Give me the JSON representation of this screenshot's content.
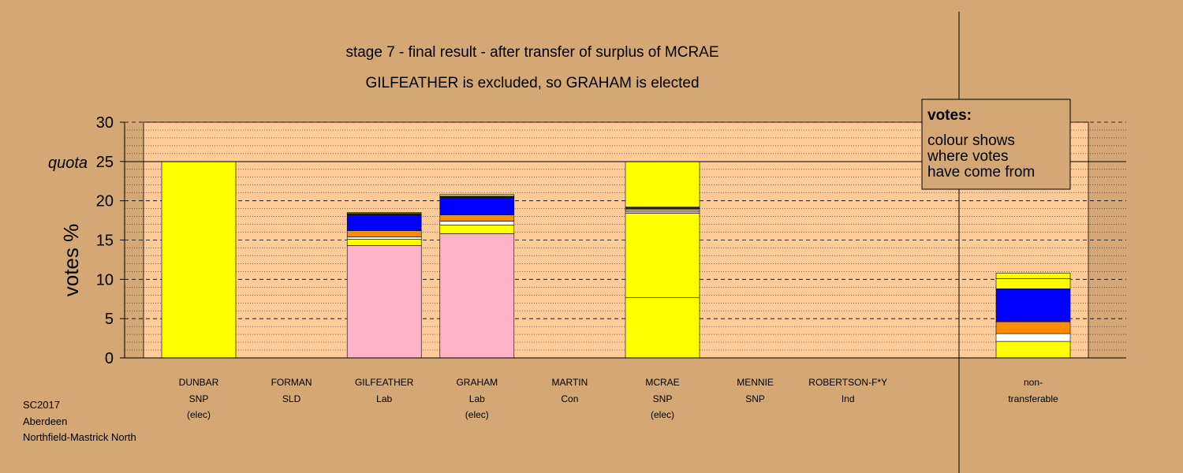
{
  "chart_data": {
    "type": "bar",
    "stacked": true,
    "title": "stage 7 - final result - after transfer of surplus of MCRAE",
    "subtitle": "GILFEATHER is excluded, so GRAHAM is elected",
    "ylabel": "votes %",
    "ylim": [
      0,
      30
    ],
    "yticks": [
      0,
      5,
      10,
      15,
      20,
      25,
      30
    ],
    "quota": 25,
    "quota_label": "quota",
    "grid": true,
    "legend": {
      "title": "votes:",
      "lines": [
        "colour shows",
        "where votes",
        "have come from"
      ],
      "placement": "top-right"
    },
    "candidates": [
      {
        "name": "DUNBAR",
        "party": "SNP",
        "status": "(elec)",
        "segments": [
          {
            "value": 25.0,
            "color": "#FFFF00"
          }
        ]
      },
      {
        "name": "FORMAN",
        "party": "SLD",
        "status": "",
        "segments": []
      },
      {
        "name": "GILFEATHER",
        "party": "Lab",
        "status": "",
        "segments": [
          {
            "value": 14.3,
            "color": "#FFB3C8"
          },
          {
            "value": 0.8,
            "color": "#FFFF00"
          },
          {
            "value": 0.3,
            "color": "#FFFFFF"
          },
          {
            "value": 0.8,
            "color": "#FF8C00"
          },
          {
            "value": 2.0,
            "color": "#0000FF"
          },
          {
            "value": 0.2,
            "color": "#222222"
          },
          {
            "value": 0.1,
            "color": "#FFFF00"
          }
        ]
      },
      {
        "name": "GRAHAM",
        "party": "Lab",
        "status": "(elec)",
        "segments": [
          {
            "value": 15.8,
            "color": "#FFB3C8"
          },
          {
            "value": 1.1,
            "color": "#FFFF00"
          },
          {
            "value": 0.5,
            "color": "#FFFFFF"
          },
          {
            "value": 0.8,
            "color": "#FF8C00"
          },
          {
            "value": 2.2,
            "color": "#0000FF"
          },
          {
            "value": 0.2,
            "color": "#222222"
          },
          {
            "value": 0.2,
            "color": "#FFFF00"
          }
        ]
      },
      {
        "name": "MARTIN",
        "party": "Con",
        "status": "",
        "segments": []
      },
      {
        "name": "MCRAE",
        "party": "SNP",
        "status": "(elec)",
        "segments": [
          {
            "value": 7.7,
            "color": "#FFFF00"
          },
          {
            "value": 10.7,
            "color": "#FFFF00"
          },
          {
            "value": 0.2,
            "color": "#FFB3C8"
          },
          {
            "value": 0.2,
            "color": "#FFFFFF"
          },
          {
            "value": 0.2,
            "color": "#FF8C00"
          },
          {
            "value": 0.2,
            "color": "#222222"
          },
          {
            "value": 5.8,
            "color": "#FFFF00"
          }
        ]
      },
      {
        "name": "MENNIE",
        "party": "SNP",
        "status": "",
        "segments": []
      },
      {
        "name": "ROBERTSON-F*Y",
        "party": "Ind",
        "status": "",
        "segments": []
      }
    ],
    "nontransferable": {
      "label_line1": "non-",
      "label_line2": "transferable",
      "segments": [
        {
          "value": 2.1,
          "color": "#FFFF00"
        },
        {
          "value": 1.0,
          "color": "#FFFFFF"
        },
        {
          "value": 1.5,
          "color": "#FF8C00"
        },
        {
          "value": 4.2,
          "color": "#0000FF"
        },
        {
          "value": 1.3,
          "color": "#FFFF00"
        },
        {
          "value": 0.7,
          "color": "#FFFF00"
        }
      ]
    }
  },
  "footnote": {
    "line1": "SC2017",
    "line2": "Aberdeen",
    "line3": "Northfield-Mastrick North"
  },
  "colors": {
    "background": "#D4A874",
    "plot_background": "#FFCC99"
  }
}
